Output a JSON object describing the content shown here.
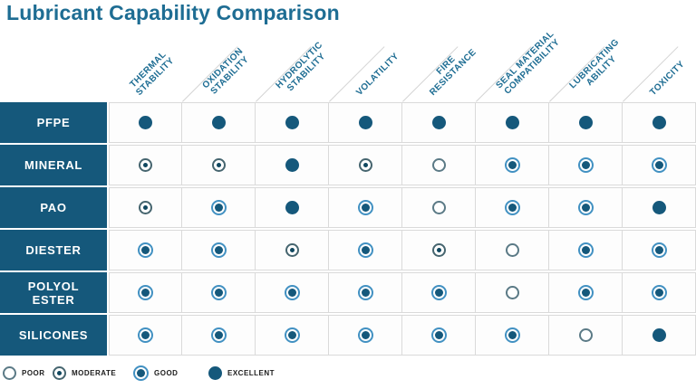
{
  "title": "Lubricant Capability Comparison",
  "chart_data": {
    "type": "table",
    "title": "Lubricant Capability Comparison",
    "columns": [
      "THERMAL STABILITY",
      "OXIDATION STABILITY",
      "HYDROLYTIC STABILITY",
      "VOLATILITY",
      "FIRE RESISTANCE",
      "SEAL MATERIAL COMPATIBILITY",
      "LUBRICATING ABILITY",
      "TOXICITY"
    ],
    "rows": [
      "PFPE",
      "MINERAL",
      "PAO",
      "DIESTER",
      "POLYOL ESTER",
      "SILICONES"
    ],
    "scale": [
      "POOR",
      "MODERATE",
      "GOOD",
      "EXCELLENT"
    ],
    "ratings": [
      [
        "EXCELLENT",
        "EXCELLENT",
        "EXCELLENT",
        "EXCELLENT",
        "EXCELLENT",
        "EXCELLENT",
        "EXCELLENT",
        "EXCELLENT"
      ],
      [
        "MODERATE",
        "MODERATE",
        "EXCELLENT",
        "MODERATE",
        "POOR",
        "GOOD",
        "GOOD",
        "GOOD"
      ],
      [
        "MODERATE",
        "GOOD",
        "EXCELLENT",
        "GOOD",
        "POOR",
        "GOOD",
        "GOOD",
        "EXCELLENT"
      ],
      [
        "GOOD",
        "GOOD",
        "MODERATE",
        "GOOD",
        "MODERATE",
        "POOR",
        "GOOD",
        "GOOD"
      ],
      [
        "GOOD",
        "GOOD",
        "GOOD",
        "GOOD",
        "GOOD",
        "POOR",
        "GOOD",
        "GOOD"
      ],
      [
        "GOOD",
        "GOOD",
        "GOOD",
        "GOOD",
        "GOOD",
        "GOOD",
        "POOR",
        "EXCELLENT"
      ]
    ]
  },
  "table": {
    "column_lines": [
      [
        "THERMAL",
        "STABILITY"
      ],
      [
        "OXIDATION",
        "STABILITY"
      ],
      [
        "HYDROLYTIC",
        "STABILITY"
      ],
      [
        "VOLATILITY"
      ],
      [
        "FIRE",
        "RESISTANCE"
      ],
      [
        "SEAL MATERIAL",
        "COMPATIBILITY"
      ],
      [
        "LUBRICATING",
        "ABILITY"
      ],
      [
        "TOXICITY"
      ]
    ],
    "row_label_lines": [
      [
        "PFPE"
      ],
      [
        "MINERAL"
      ],
      [
        "PAO"
      ],
      [
        "DIESTER"
      ],
      [
        "POLYOL",
        "ESTER"
      ],
      [
        "SILICONES"
      ]
    ]
  },
  "legend": {
    "items": [
      {
        "label": "POOR",
        "level": "poor"
      },
      {
        "label": "MODERATE",
        "level": "moderate"
      },
      {
        "label": "GOOD",
        "level": "good"
      },
      {
        "label": "EXCELLENT",
        "level": "excellent"
      }
    ]
  },
  "colors": {
    "brand_teal": "#15587B",
    "title_teal": "#1E6D93",
    "good_ring_blue": "#4291C2",
    "cell_border": "#DADADA"
  }
}
